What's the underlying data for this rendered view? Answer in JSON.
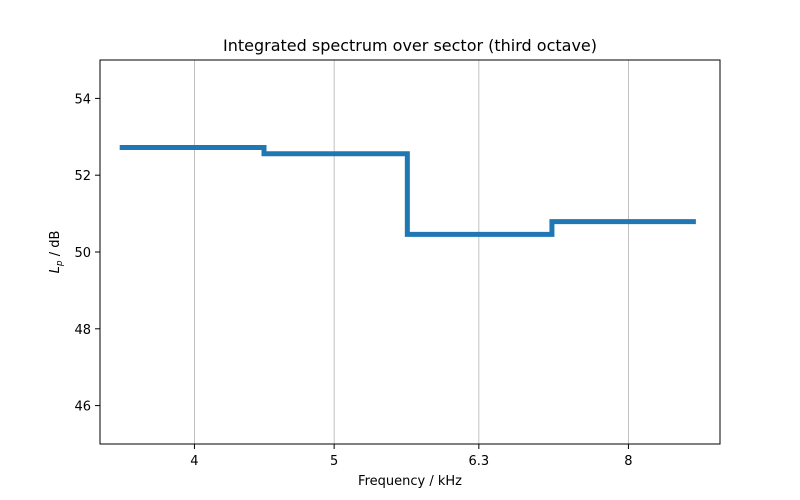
{
  "chart_data": {
    "type": "line",
    "step": "post",
    "title": "Integrated spectrum over sector (third octave)",
    "xlabel": "Frequency / kHz",
    "ylabel_main": "L",
    "ylabel_sub": "p",
    "ylabel_rest": " / dB",
    "x_scale": "log",
    "x_ticks": [
      4,
      5,
      6.3,
      8
    ],
    "x_tick_labels": [
      "4",
      "5",
      "6.3",
      "8"
    ],
    "xlim": [
      3.44,
      9.26
    ],
    "y_ticks": [
      46,
      48,
      50,
      52,
      54
    ],
    "y_tick_labels": [
      "46",
      "48",
      "50",
      "52",
      "54"
    ],
    "ylim": [
      45,
      55
    ],
    "grid": "x-major",
    "series": [
      {
        "color": "#1f77b4",
        "x": [
          3.55,
          4.47,
          5.62,
          7.08,
          8.91
        ],
        "y": [
          52.72,
          52.56,
          50.46,
          50.79,
          50.79
        ]
      }
    ]
  }
}
